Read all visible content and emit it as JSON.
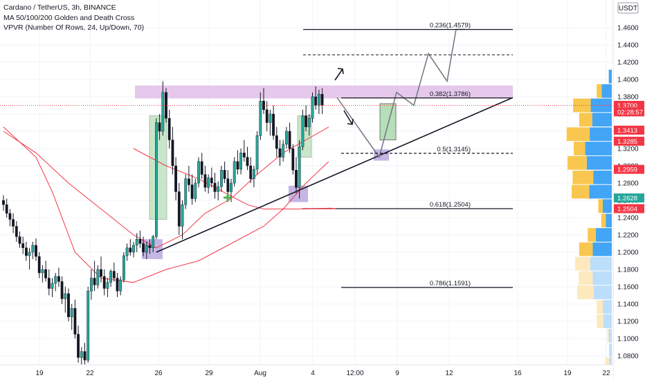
{
  "legend": {
    "symbol": "Cardano / TetherUS, 3h, BINANCE",
    "ma": "MA 50/100/200 Golden and Death Cross",
    "vpvr": "VPVR (Number Of Rows, 24, Up/Down, 70)"
  },
  "currency": "USDT",
  "colors": {
    "up": "#26a69a",
    "down": "#ef5350",
    "candle_body": "#131722",
    "ma": "#f23645",
    "resistance_zone": "#e1bee7",
    "support_box": "#b39ddb",
    "projection_box": "#a5d6a7",
    "vp_up": "#42a5f5",
    "vp_down": "#f9c74f",
    "vp_up_light": "#bbdefb",
    "vp_down_light": "#fde9bd",
    "tag_red": "#f23645",
    "tag_green": "#26a69a"
  },
  "chart_data": {
    "type": "candlestick",
    "title": "Cardano / TetherUS, 3h, BINANCE",
    "x_ticks": [
      "19",
      "22",
      "26",
      "29",
      "Aug",
      "4",
      "12:00",
      "9",
      "12",
      "16",
      "19",
      "22"
    ],
    "y_ticks": [
      "1.4600",
      "1.4400",
      "1.4200",
      "1.4000",
      "1.3800",
      "1.3600",
      "1.3400",
      "1.3200",
      "1.3000",
      "1.2800",
      "1.2600",
      "1.2400",
      "1.2200",
      "1.2000",
      "1.1800",
      "1.1600",
      "1.1400",
      "1.1200",
      "1.1000",
      "1.0800"
    ],
    "ylim": [
      1.07,
      1.475
    ],
    "fib_levels": [
      {
        "label": "0.236(1.4579)",
        "value": 1.4579
      },
      {
        "label": "0.382(1.3786)",
        "value": 1.3786
      },
      {
        "label": "0.5(1.3145)",
        "value": 1.3145
      },
      {
        "label": "0.618(1.2504)",
        "value": 1.2504
      },
      {
        "label": "0.786(1.1591)",
        "value": 1.1591
      }
    ],
    "price_tags": [
      {
        "label": "1.3700",
        "value": 1.37,
        "color": "#f23645"
      },
      {
        "label": "02:28:57",
        "value": 1.3625,
        "color": "#f23645"
      },
      {
        "label": "1.3413",
        "value": 1.3413,
        "color": "#f23645"
      },
      {
        "label": "1.3285",
        "value": 1.3285,
        "color": "#f23645"
      },
      {
        "label": "1.2959",
        "value": 1.2959,
        "color": "#f23645"
      },
      {
        "label": "1.2628",
        "value": 1.2628,
        "color": "#26a69a"
      },
      {
        "label": "1.2504",
        "value": 1.2504,
        "color": "#f23645"
      }
    ],
    "last_price": 1.37,
    "resistance_zone": [
      1.378,
      1.393
    ],
    "candles": [
      [
        1.26,
        1.266,
        1.248,
        1.255
      ],
      [
        1.255,
        1.262,
        1.24,
        1.245
      ],
      [
        1.245,
        1.25,
        1.23,
        1.238
      ],
      [
        1.238,
        1.245,
        1.222,
        1.23
      ],
      [
        1.23,
        1.236,
        1.212,
        1.218
      ],
      [
        1.218,
        1.224,
        1.205,
        1.21
      ],
      [
        1.21,
        1.218,
        1.198,
        1.205
      ],
      [
        1.205,
        1.212,
        1.19,
        1.196
      ],
      [
        1.196,
        1.205,
        1.18,
        1.2
      ],
      [
        1.2,
        1.212,
        1.192,
        1.208
      ],
      [
        1.208,
        1.216,
        1.19,
        1.195
      ],
      [
        1.195,
        1.2,
        1.17,
        1.176
      ],
      [
        1.176,
        1.185,
        1.165,
        1.18
      ],
      [
        1.18,
        1.19,
        1.166,
        1.17
      ],
      [
        1.17,
        1.18,
        1.15,
        1.158
      ],
      [
        1.158,
        1.17,
        1.148,
        1.164
      ],
      [
        1.164,
        1.176,
        1.155,
        1.172
      ],
      [
        1.172,
        1.182,
        1.16,
        1.166
      ],
      [
        1.166,
        1.172,
        1.14,
        1.146
      ],
      [
        1.146,
        1.16,
        1.13,
        1.152
      ],
      [
        1.152,
        1.158,
        1.12,
        1.125
      ],
      [
        1.125,
        1.14,
        1.11,
        1.135
      ],
      [
        1.135,
        1.145,
        1.1,
        1.105
      ],
      [
        1.105,
        1.115,
        1.072,
        1.078
      ],
      [
        1.078,
        1.09,
        1.065,
        1.085
      ],
      [
        1.085,
        1.095,
        1.07,
        1.075
      ],
      [
        1.075,
        1.16,
        1.072,
        1.155
      ],
      [
        1.155,
        1.18,
        1.145,
        1.17
      ],
      [
        1.17,
        1.19,
        1.155,
        1.162
      ],
      [
        1.162,
        1.185,
        1.158,
        1.18
      ],
      [
        1.18,
        1.195,
        1.165,
        1.172
      ],
      [
        1.172,
        1.18,
        1.15,
        1.158
      ],
      [
        1.158,
        1.17,
        1.148,
        1.165
      ],
      [
        1.165,
        1.18,
        1.16,
        1.178
      ],
      [
        1.178,
        1.188,
        1.166,
        1.17
      ],
      [
        1.17,
        1.176,
        1.148,
        1.155
      ],
      [
        1.155,
        1.172,
        1.15,
        1.168
      ],
      [
        1.168,
        1.2,
        1.165,
        1.196
      ],
      [
        1.196,
        1.21,
        1.19,
        1.205
      ],
      [
        1.205,
        1.215,
        1.196,
        1.2
      ],
      [
        1.2,
        1.212,
        1.194,
        1.208
      ],
      [
        1.208,
        1.222,
        1.2,
        1.215
      ],
      [
        1.215,
        1.225,
        1.205,
        1.21
      ],
      [
        1.21,
        1.218,
        1.195,
        1.2
      ],
      [
        1.2,
        1.212,
        1.192,
        1.208
      ],
      [
        1.208,
        1.215,
        1.198,
        1.205
      ],
      [
        1.205,
        1.22,
        1.2,
        1.218
      ],
      [
        1.218,
        1.355,
        1.215,
        1.35
      ],
      [
        1.35,
        1.36,
        1.33,
        1.34
      ],
      [
        1.34,
        1.398,
        1.335,
        1.385
      ],
      [
        1.385,
        1.39,
        1.35,
        1.355
      ],
      [
        1.355,
        1.365,
        1.32,
        1.33
      ],
      [
        1.33,
        1.345,
        1.29,
        1.3
      ],
      [
        1.3,
        1.31,
        1.26,
        1.27
      ],
      [
        1.27,
        1.28,
        1.22,
        1.23
      ],
      [
        1.23,
        1.26,
        1.215,
        1.255
      ],
      [
        1.255,
        1.29,
        1.25,
        1.285
      ],
      [
        1.285,
        1.3,
        1.27,
        1.278
      ],
      [
        1.278,
        1.29,
        1.255,
        1.262
      ],
      [
        1.262,
        1.285,
        1.258,
        1.28
      ],
      [
        1.28,
        1.31,
        1.275,
        1.305
      ],
      [
        1.305,
        1.315,
        1.285,
        1.29
      ],
      [
        1.29,
        1.3,
        1.27,
        1.275
      ],
      [
        1.275,
        1.29,
        1.268,
        1.286
      ],
      [
        1.286,
        1.298,
        1.275,
        1.28
      ],
      [
        1.28,
        1.292,
        1.262,
        1.27
      ],
      [
        1.27,
        1.282,
        1.26,
        1.276
      ],
      [
        1.276,
        1.3,
        1.27,
        1.295
      ],
      [
        1.295,
        1.305,
        1.28,
        1.285
      ],
      [
        1.285,
        1.295,
        1.265,
        1.27
      ],
      [
        1.27,
        1.285,
        1.258,
        1.28
      ],
      [
        1.28,
        1.31,
        1.276,
        1.305
      ],
      [
        1.305,
        1.318,
        1.29,
        1.296
      ],
      [
        1.296,
        1.32,
        1.29,
        1.315
      ],
      [
        1.315,
        1.33,
        1.305,
        1.31
      ],
      [
        1.31,
        1.322,
        1.295,
        1.3
      ],
      [
        1.3,
        1.31,
        1.28,
        1.285
      ],
      [
        1.285,
        1.3,
        1.275,
        1.296
      ],
      [
        1.296,
        1.34,
        1.29,
        1.335
      ],
      [
        1.335,
        1.385,
        1.33,
        1.375
      ],
      [
        1.375,
        1.39,
        1.36,
        1.365
      ],
      [
        1.365,
        1.375,
        1.34,
        1.35
      ],
      [
        1.35,
        1.365,
        1.335,
        1.36
      ],
      [
        1.36,
        1.37,
        1.33,
        1.335
      ],
      [
        1.335,
        1.345,
        1.31,
        1.32
      ],
      [
        1.32,
        1.33,
        1.3,
        1.31
      ],
      [
        1.31,
        1.33,
        1.305,
        1.325
      ],
      [
        1.325,
        1.345,
        1.32,
        1.34
      ],
      [
        1.34,
        1.35,
        1.315,
        1.32
      ],
      [
        1.32,
        1.325,
        1.29,
        1.295
      ],
      [
        1.295,
        1.31,
        1.268,
        1.275
      ],
      [
        1.275,
        1.33,
        1.262,
        1.322
      ],
      [
        1.322,
        1.365,
        1.318,
        1.358
      ],
      [
        1.358,
        1.37,
        1.34,
        1.345
      ],
      [
        1.345,
        1.36,
        1.335,
        1.355
      ],
      [
        1.355,
        1.385,
        1.35,
        1.38
      ],
      [
        1.38,
        1.392,
        1.365,
        1.37
      ],
      [
        1.37,
        1.388,
        1.36,
        1.383
      ],
      [
        1.383,
        1.39,
        1.36,
        1.37
      ]
    ],
    "ma_series": [
      {
        "name": "MA50",
        "points": [
          [
            0,
            1.34
          ],
          [
            10,
            1.315
          ],
          [
            20,
            1.28
          ],
          [
            30,
            1.25
          ],
          [
            40,
            1.22
          ],
          [
            47,
            1.205
          ],
          [
            55,
            1.22
          ],
          [
            62,
            1.245
          ],
          [
            70,
            1.262
          ],
          [
            78,
            1.29
          ],
          [
            86,
            1.315
          ],
          [
            93,
            1.33
          ],
          [
            100,
            1.345
          ]
        ]
      },
      {
        "name": "MA100",
        "points": [
          [
            0,
            1.345
          ],
          [
            10,
            1.31
          ],
          [
            15,
            1.27
          ],
          [
            22,
            1.2
          ],
          [
            30,
            1.17
          ],
          [
            40,
            1.165
          ],
          [
            50,
            1.18
          ],
          [
            60,
            1.19
          ],
          [
            70,
            1.21
          ],
          [
            80,
            1.23
          ],
          [
            86,
            1.25
          ],
          [
            93,
            1.28
          ],
          [
            100,
            1.305
          ]
        ]
      },
      {
        "name": "MA200",
        "points": [
          [
            40,
            1.32
          ],
          [
            50,
            1.3
          ],
          [
            60,
            1.285
          ],
          [
            70,
            1.265
          ],
          [
            75,
            1.255
          ],
          [
            80,
            1.25
          ],
          [
            90,
            1.25
          ],
          [
            101,
            1.251
          ]
        ]
      }
    ],
    "trendline": [
      [
        1.2,
        47
      ],
      [
        1.379,
        152
      ]
    ],
    "projection_path": [
      [
        1.379,
        101
      ],
      [
        1.31,
        112
      ],
      [
        1.385,
        121
      ],
      [
        1.37,
        124
      ],
      [
        1.43,
        130
      ],
      [
        1.398,
        136
      ],
      [
        1.458,
        142
      ]
    ],
    "volume_profile": [
      {
        "price": 1.07,
        "up": 0.05,
        "down": 0.08
      },
      {
        "price": 1.0866,
        "up": 0.05,
        "down": 0.0
      },
      {
        "price": 1.1034,
        "up": 0.06,
        "down": 0.03
      },
      {
        "price": 1.12,
        "up": 0.17,
        "down": 0.13
      },
      {
        "price": 1.1366,
        "up": 0.18,
        "down": 0.12
      },
      {
        "price": 1.1534,
        "up": 0.36,
        "down": 0.33
      },
      {
        "price": 1.17,
        "up": 0.38,
        "down": 0.28
      },
      {
        "price": 1.1866,
        "up": 0.43,
        "down": 0.3
      },
      {
        "price": 1.2034,
        "up": 0.38,
        "down": 0.27
      },
      {
        "price": 1.22,
        "up": 0.32,
        "down": 0.16
      },
      {
        "price": 1.2366,
        "up": 0.12,
        "down": 0.09
      },
      {
        "price": 1.2534,
        "up": 0.18,
        "down": 0.09
      },
      {
        "price": 1.27,
        "up": 0.45,
        "down": 0.35
      },
      {
        "price": 1.2866,
        "up": 0.37,
        "down": 0.41
      },
      {
        "price": 1.3034,
        "up": 0.5,
        "down": 0.38
      },
      {
        "price": 1.32,
        "up": 0.53,
        "down": 0.23
      },
      {
        "price": 1.3366,
        "up": 0.44,
        "down": 0.46
      },
      {
        "price": 1.3534,
        "up": 0.39,
        "down": 0.26
      },
      {
        "price": 1.37,
        "up": 0.42,
        "down": 0.35
      },
      {
        "price": 1.3866,
        "up": 0.2,
        "down": 0.1
      },
      {
        "price": 1.4034,
        "up": 0.06,
        "down": 0.0
      }
    ]
  }
}
